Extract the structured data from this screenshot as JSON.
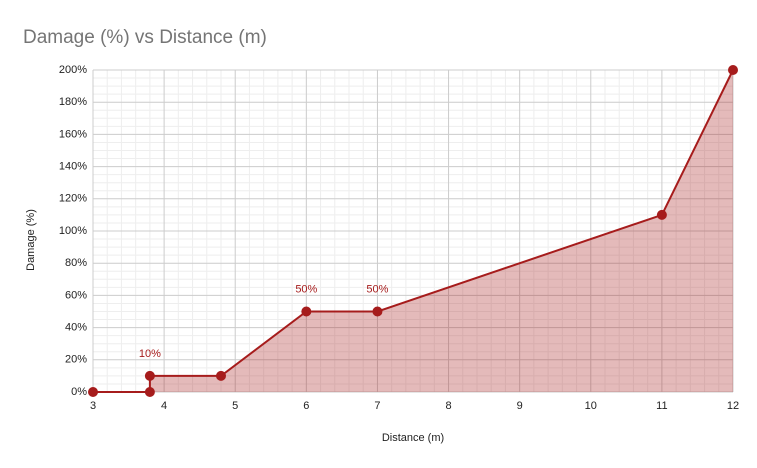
{
  "chart_data": {
    "type": "area",
    "title": "Damage (%) vs Distance (m)",
    "x_label": "Distance (m)",
    "y_label": "Damage (%)",
    "x": [
      3,
      3.8,
      3.8,
      4.8,
      6,
      7,
      11,
      12
    ],
    "series": [
      {
        "name": "Damage (%)",
        "color": "#a61c1c",
        "values": [
          0,
          0,
          10,
          10,
          50,
          50,
          110,
          200
        ],
        "value_labels": [
          null,
          null,
          "10%",
          null,
          "50%",
          "50%",
          null,
          null
        ]
      }
    ],
    "xlim": [
      3,
      12
    ],
    "xticks": [
      3,
      4,
      5,
      6,
      7,
      8,
      9,
      10,
      11,
      12
    ],
    "ylim": [
      0,
      200
    ],
    "yticks": [
      {
        "value": 0,
        "label": "0%"
      },
      {
        "value": 20,
        "label": "20%"
      },
      {
        "value": 40,
        "label": "40%"
      },
      {
        "value": 60,
        "label": "60%"
      },
      {
        "value": 80,
        "label": "80%"
      },
      {
        "value": 100,
        "label": "100%"
      },
      {
        "value": 120,
        "label": "120%"
      },
      {
        "value": 140,
        "label": "140%"
      },
      {
        "value": 160,
        "label": "160%"
      },
      {
        "value": 180,
        "label": "180%"
      },
      {
        "value": 200,
        "label": "200%"
      }
    ],
    "grid": true
  }
}
